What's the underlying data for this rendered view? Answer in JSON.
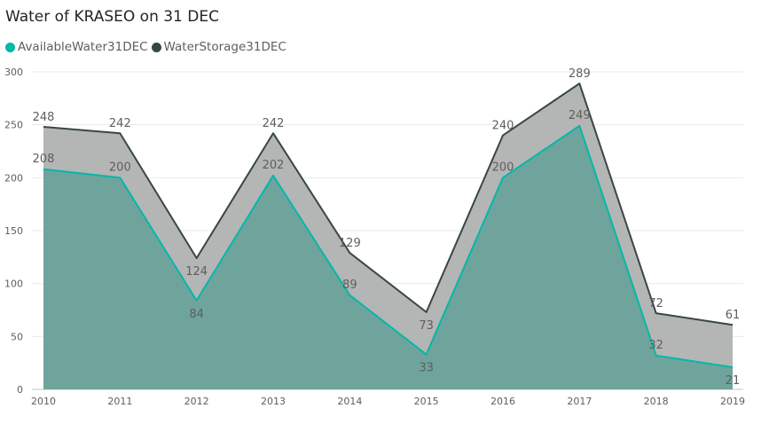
{
  "chart_data": {
    "type": "area",
    "title": "Water of KRASEO on 31 DEC",
    "x": [
      "2010",
      "2011",
      "2012",
      "2013",
      "2014",
      "2015",
      "2016",
      "2017",
      "2018",
      "2019"
    ],
    "ylim": [
      0,
      300
    ],
    "yticks": [
      0,
      50,
      100,
      150,
      200,
      250,
      300
    ],
    "grid": true,
    "legend": "top-left",
    "series": [
      {
        "name": "AvailableWater31DEC",
        "color": "#01B8AA",
        "fill": "#6FA49C",
        "values": [
          208,
          200,
          84,
          202,
          89,
          33,
          200,
          249,
          32,
          21
        ]
      },
      {
        "name": "WaterStorage31DEC",
        "color": "#374649",
        "fill": "#B4B5B5",
        "values": [
          248,
          242,
          124,
          242,
          129,
          73,
          240,
          289,
          72,
          61
        ]
      }
    ]
  }
}
